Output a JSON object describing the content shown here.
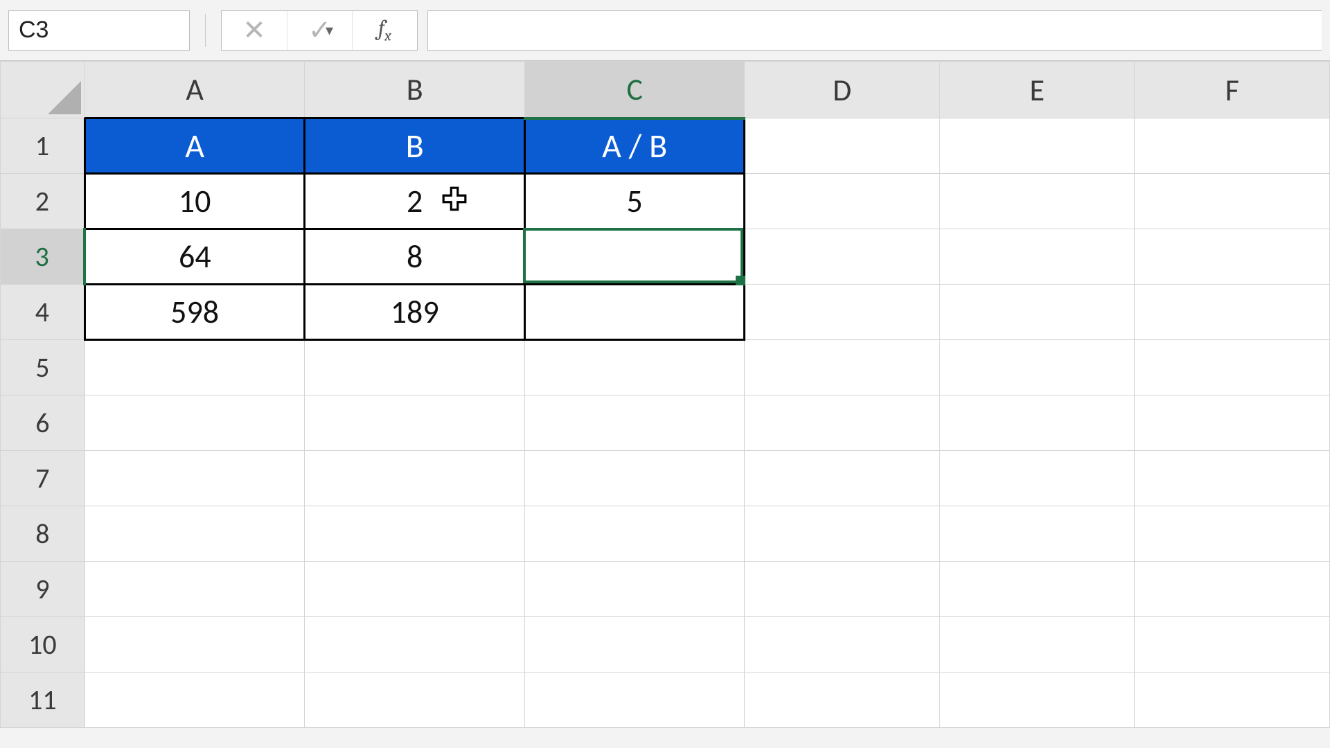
{
  "name_box": {
    "value": "C3"
  },
  "formula_bar": {
    "value": ""
  },
  "columns": [
    "A",
    "B",
    "C",
    "D",
    "E",
    "F"
  ],
  "visible_row_count": 11,
  "active_cell": {
    "col": "C",
    "row": 3
  },
  "cursor_over_cell": {
    "col": "B",
    "row": 2
  },
  "table": {
    "header_bg": "#0b5bd3",
    "header_fg": "#ffffff",
    "border_color": "#000000",
    "columns": [
      "A",
      "B",
      "A / B"
    ],
    "rows": [
      {
        "A": "10",
        "B": "2",
        "C": "5"
      },
      {
        "A": "64",
        "B": "8",
        "C": ""
      },
      {
        "A": "598",
        "B": "189",
        "C": ""
      }
    ]
  },
  "colors": {
    "sheet_bg": "#ffffff",
    "chrome_bg": "#f3f3f3",
    "gridline": "#d4d4d4",
    "header_bg": "#e6e6e6",
    "active_header_bg": "#d2d2d2",
    "excel_green": "#1e7145"
  },
  "icons": {
    "cancel": "✕",
    "enter": "✓",
    "fx_f": "f",
    "fx_x": "x",
    "chevron_down": "▾"
  }
}
